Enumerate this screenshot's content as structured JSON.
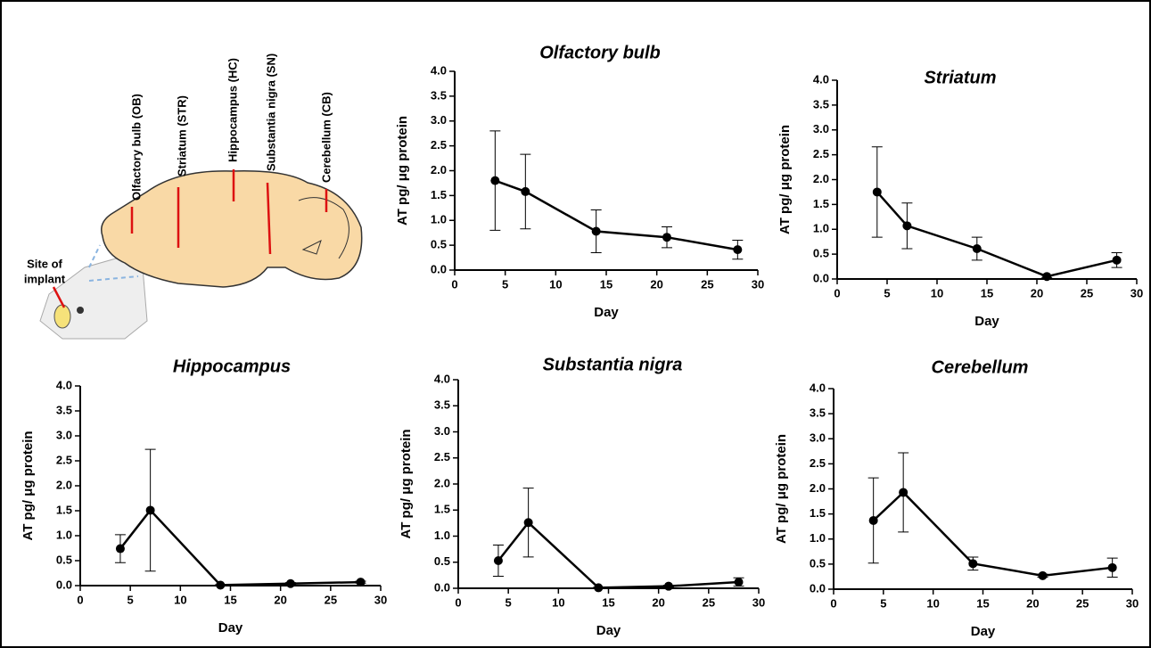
{
  "diagram": {
    "labels": [
      "Olfactory bulb (OB)",
      "Striatum (STR)",
      "Hippocampus (HC)",
      "Substantia nigra (SN)",
      "Cerebellum (CB)"
    ],
    "implant_label": [
      "Site of",
      "implant"
    ]
  },
  "chart_data": [
    {
      "type": "line",
      "title": "Olfactory bulb",
      "x_label": "Day",
      "y_label": "AT pg/ μg protein",
      "color": "#000000",
      "x": [
        4,
        7,
        14,
        21,
        28
      ],
      "values": [
        1.8,
        1.58,
        0.78,
        0.66,
        0.41
      ],
      "errors": [
        1.0,
        0.75,
        0.43,
        0.21,
        0.19
      ],
      "xlim": [
        0,
        30
      ],
      "xticks": [
        0,
        5,
        10,
        15,
        20,
        25,
        30
      ],
      "ylim": [
        0,
        4
      ],
      "yticks": [
        {
          "value": 0,
          "label": "0.0"
        },
        0.5,
        {
          "value": 1,
          "label": "1.0"
        },
        1.5,
        {
          "value": 2,
          "label": "2.0"
        },
        2.5,
        {
          "value": 3,
          "label": "3.0"
        },
        3.5,
        {
          "value": 4,
          "label": "4.0"
        }
      ]
    },
    {
      "type": "line",
      "title": "Striatum",
      "x_label": "Day",
      "y_label": "AT pg/ μg protein",
      "color": "#000000",
      "x": [
        4,
        7,
        14,
        21,
        28
      ],
      "values": [
        1.75,
        1.07,
        0.61,
        0.05,
        0.38
      ],
      "errors": [
        0.91,
        0.46,
        0.23,
        0.02,
        0.15
      ],
      "xlim": [
        0,
        30
      ],
      "xticks": [
        0,
        5,
        10,
        15,
        20,
        25,
        30
      ],
      "ylim": [
        0,
        4
      ],
      "yticks": [
        {
          "value": 0,
          "label": "0.0"
        },
        0.5,
        {
          "value": 1,
          "label": "1.0"
        },
        1.5,
        {
          "value": 2,
          "label": "2.0"
        },
        2.5,
        {
          "value": 3,
          "label": "3.0"
        },
        3.5,
        {
          "value": 4,
          "label": "4.0"
        }
      ]
    },
    {
      "type": "line",
      "title": "Hippocampus",
      "x_label": "Day",
      "y_label": "AT pg/ μg protein",
      "color": "#000000",
      "x": [
        4,
        7,
        14,
        21,
        28
      ],
      "values": [
        0.74,
        1.51,
        0.01,
        0.04,
        0.07
      ],
      "errors": [
        0.28,
        1.22,
        0.01,
        0.02,
        0.02
      ],
      "xlim": [
        0,
        30
      ],
      "xticks": [
        0,
        5,
        10,
        15,
        20,
        25,
        30
      ],
      "ylim": [
        0,
        4
      ],
      "yticks": [
        {
          "value": 0,
          "label": "0.0"
        },
        0.5,
        {
          "value": 1,
          "label": "1.0"
        },
        1.5,
        {
          "value": 2,
          "label": "2.0"
        },
        2.5,
        {
          "value": 3,
          "label": "3.0"
        },
        3.5,
        {
          "value": 4,
          "label": "4.0"
        }
      ]
    },
    {
      "type": "line",
      "title": "Substantia nigra",
      "x_label": "Day",
      "y_label": "AT pg/ μg protein",
      "color": "#000000",
      "x": [
        4,
        7,
        14,
        21,
        28
      ],
      "values": [
        0.53,
        1.26,
        0.01,
        0.04,
        0.12
      ],
      "errors": [
        0.3,
        0.66,
        0.01,
        0.02,
        0.08
      ],
      "xlim": [
        0,
        30
      ],
      "xticks": [
        0,
        5,
        10,
        15,
        20,
        25,
        30
      ],
      "ylim": [
        0,
        4
      ],
      "yticks": [
        {
          "value": 0,
          "label": "0.0"
        },
        0.5,
        {
          "value": 1,
          "label": "1.0"
        },
        1.5,
        {
          "value": 2,
          "label": "2.0"
        },
        2.5,
        {
          "value": 3,
          "label": "3.0"
        },
        3.5,
        {
          "value": 4,
          "label": "4.0"
        }
      ]
    },
    {
      "type": "line",
      "title": "Cerebellum",
      "x_label": "Day",
      "y_label": "AT pg/ μg protein",
      "color": "#000000",
      "x": [
        4,
        7,
        14,
        21,
        28
      ],
      "values": [
        1.37,
        1.93,
        0.51,
        0.27,
        0.43
      ],
      "errors": [
        0.85,
        0.79,
        0.13,
        0.03,
        0.19
      ],
      "xlim": [
        0,
        30
      ],
      "xticks": [
        0,
        5,
        10,
        15,
        20,
        25,
        30
      ],
      "ylim": [
        0,
        4
      ],
      "yticks": [
        {
          "value": 0,
          "label": "0.0"
        },
        0.5,
        {
          "value": 1,
          "label": "1.0"
        },
        1.5,
        {
          "value": 2,
          "label": "2.0"
        },
        2.5,
        {
          "value": 3,
          "label": "3.0"
        },
        3.5,
        {
          "value": 4,
          "label": "4.0"
        }
      ]
    }
  ]
}
